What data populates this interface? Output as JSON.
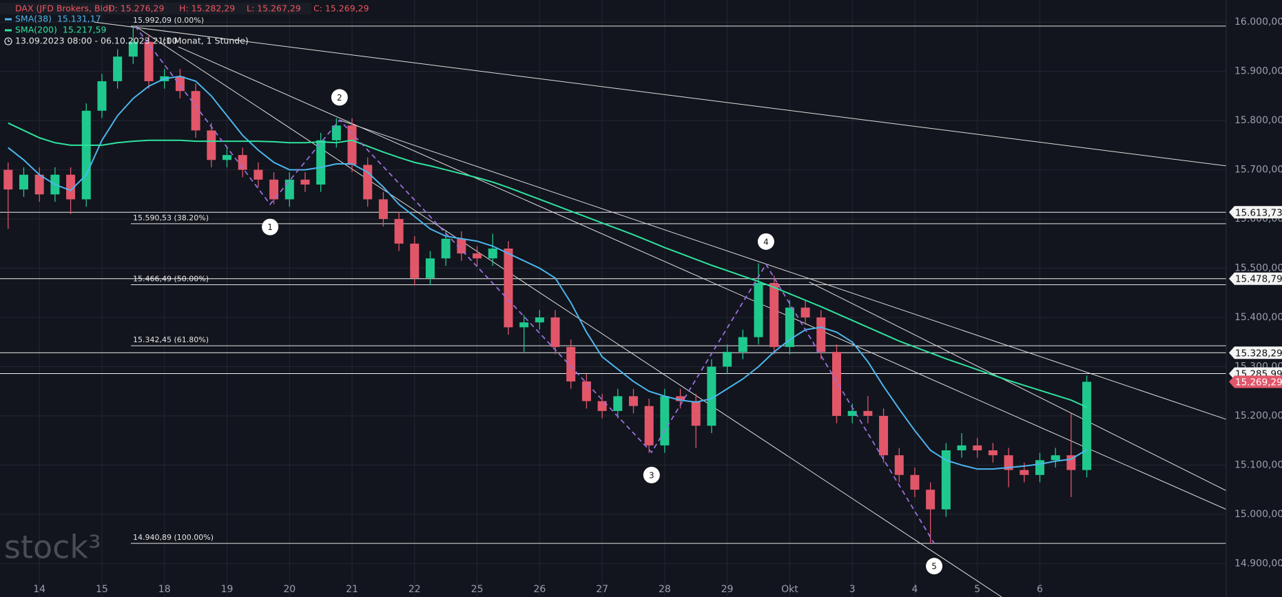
{
  "header": {
    "instrument": "DAX (JFD Brokers, Bid)",
    "ohlc": [
      "O: 15.276,29",
      "H: 15.282,29",
      "L: 15.267,29",
      "C: 15.269,29"
    ],
    "period": "13.09.2023 08:00 - 06.10.2023 21:00",
    "interval": "(1 Monat, 1 Stunde)"
  },
  "watermark": "stock³",
  "chart_data": {
    "type": "candlestick",
    "up_color": "#1fc98e",
    "down_color": "#e2566a",
    "x": [
      -0.5,
      -0.25,
      0,
      0.25,
      0.5,
      0.75,
      1,
      1.25,
      1.5,
      1.75,
      2,
      2.25,
      2.5,
      2.75,
      3,
      3.25,
      3.5,
      3.75,
      4,
      4.25,
      4.5,
      4.75,
      5,
      5.25,
      5.5,
      5.75,
      6,
      6.25,
      6.5,
      6.75,
      7,
      7.25,
      7.5,
      7.75,
      8,
      8.25,
      8.5,
      8.75,
      9,
      9.25,
      9.5,
      9.75,
      10,
      10.25,
      10.5,
      10.75,
      11,
      11.25,
      11.5,
      11.75,
      12,
      12.25,
      12.5,
      12.75,
      13,
      13.25,
      13.5,
      13.75,
      14,
      14.25,
      14.5,
      14.75,
      15,
      15.25,
      15.5,
      15.75,
      16,
      16.25,
      16.5,
      16.75
    ],
    "open": [
      15700,
      15660,
      15690,
      15650,
      15690,
      15640,
      15820,
      15880,
      15930,
      15960,
      15880,
      15890,
      15860,
      15780,
      15720,
      15730,
      15700,
      15680,
      15640,
      15680,
      15670,
      15760,
      15790,
      15710,
      15640,
      15600,
      15550,
      15480,
      15520,
      15560,
      15530,
      15520,
      15540,
      15380,
      15390,
      15400,
      15340,
      15270,
      15230,
      15210,
      15240,
      15220,
      15140,
      15240,
      15230,
      15180,
      15300,
      15330,
      15360,
      15470,
      15340,
      15420,
      15400,
      15330,
      15200,
      15210,
      15200,
      15120,
      15080,
      15050,
      15010,
      15130,
      15140,
      15130,
      15120,
      15090,
      15080,
      15110,
      15120,
      15090
    ],
    "high": [
      15715,
      15705,
      15705,
      15705,
      15705,
      15835,
      15895,
      15945,
      15992,
      15975,
      15905,
      15905,
      15875,
      15795,
      15745,
      15745,
      15715,
      15695,
      15695,
      15695,
      15775,
      15805,
      15805,
      15725,
      15655,
      15615,
      15565,
      15535,
      15575,
      15575,
      15545,
      15570,
      15555,
      15405,
      15415,
      15415,
      15355,
      15285,
      15245,
      15255,
      15255,
      15235,
      15255,
      15255,
      15245,
      15315,
      15345,
      15375,
      15510,
      15485,
      15435,
      15435,
      15415,
      15345,
      15225,
      15240,
      15215,
      15135,
      15095,
      15065,
      15145,
      15165,
      15155,
      15145,
      15135,
      15105,
      15125,
      15135,
      15205,
      15282
    ],
    "low": [
      15580,
      15645,
      15635,
      15635,
      15610,
      15625,
      15805,
      15865,
      15915,
      15865,
      15865,
      15845,
      15765,
      15705,
      15705,
      15685,
      15665,
      15630,
      15625,
      15655,
      15655,
      15745,
      15695,
      15625,
      15585,
      15535,
      15465,
      15465,
      15505,
      15515,
      15505,
      15505,
      15365,
      15330,
      15375,
      15325,
      15255,
      15215,
      15195,
      15195,
      15205,
      15125,
      15125,
      15215,
      15135,
      15165,
      15285,
      15315,
      15345,
      15325,
      15325,
      15385,
      15315,
      15185,
      15185,
      15185,
      15105,
      15065,
      15035,
      14940,
      14995,
      15115,
      15115,
      15105,
      15055,
      15065,
      15065,
      15095,
      15035,
      15075
    ],
    "close": [
      15660,
      15690,
      15650,
      15690,
      15640,
      15820,
      15880,
      15930,
      15960,
      15880,
      15890,
      15860,
      15780,
      15720,
      15730,
      15700,
      15680,
      15640,
      15680,
      15670,
      15760,
      15790,
      15710,
      15640,
      15600,
      15550,
      15480,
      15520,
      15560,
      15530,
      15520,
      15540,
      15380,
      15390,
      15400,
      15340,
      15270,
      15230,
      15210,
      15240,
      15220,
      15140,
      15240,
      15230,
      15180,
      15300,
      15330,
      15360,
      15470,
      15340,
      15420,
      15400,
      15330,
      15200,
      15210,
      15200,
      15120,
      15080,
      15050,
      15010,
      15130,
      15140,
      15130,
      15120,
      15090,
      15080,
      15110,
      15120,
      15090,
      15269.29
    ],
    "series": [
      {
        "name": "SMA(38)",
        "color": "#4db6ee",
        "value_label": "15.131,17",
        "values": [
          15745,
          15720,
          15690,
          15670,
          15658,
          15690,
          15760,
          15810,
          15845,
          15870,
          15885,
          15890,
          15880,
          15850,
          15810,
          15770,
          15740,
          15715,
          15700,
          15700,
          15705,
          15712,
          15712,
          15695,
          15665,
          15630,
          15605,
          15580,
          15565,
          15560,
          15555,
          15545,
          15530,
          15515,
          15500,
          15480,
          15430,
          15370,
          15320,
          15295,
          15270,
          15250,
          15240,
          15232,
          15228,
          15235,
          15255,
          15275,
          15300,
          15330,
          15355,
          15375,
          15380,
          15370,
          15350,
          15310,
          15260,
          15214,
          15170,
          15130,
          15110,
          15100,
          15092,
          15092,
          15095,
          15098,
          15102,
          15108,
          15112,
          15131.17
        ]
      },
      {
        "name": "SMA(200)",
        "color": "#2fe3a0",
        "value_label": "15.217,59",
        "values": [
          15795,
          15780,
          15765,
          15755,
          15750,
          15750,
          15750,
          15755,
          15758,
          15760,
          15760,
          15760,
          15758,
          15758,
          15758,
          15758,
          15758,
          15757,
          15755,
          15755,
          15757,
          15755,
          15760,
          15748,
          15736,
          15725,
          15715,
          15708,
          15700,
          15692,
          15684,
          15675,
          15664,
          15652,
          15640,
          15628,
          15616,
          15604,
          15592,
          15580,
          15568,
          15555,
          15542,
          15530,
          15518,
          15506,
          15495,
          15484,
          15473,
          15461,
          15448,
          15435,
          15422,
          15408,
          15394,
          15380,
          15366,
          15352,
          15340,
          15328,
          15316,
          15305,
          15294,
          15283,
          15272,
          15262,
          15252,
          15242,
          15232,
          15217.59
        ]
      }
    ],
    "xlim": [
      -0.63,
      18.98
    ],
    "xticks": [
      {
        "value": 0,
        "label": "14"
      },
      {
        "value": 1,
        "label": "15"
      },
      {
        "value": 2,
        "label": "18"
      },
      {
        "value": 3,
        "label": "19"
      },
      {
        "value": 4,
        "label": "20"
      },
      {
        "value": 5,
        "label": "21"
      },
      {
        "value": 6,
        "label": "22"
      },
      {
        "value": 7,
        "label": "25"
      },
      {
        "value": 8,
        "label": "26"
      },
      {
        "value": 9,
        "label": "27"
      },
      {
        "value": 10,
        "label": "28"
      },
      {
        "value": 11,
        "label": "29"
      },
      {
        "value": 12,
        "label": "Okt"
      },
      {
        "value": 13,
        "label": "3"
      },
      {
        "value": 14,
        "label": "4"
      },
      {
        "value": 15,
        "label": "5"
      },
      {
        "value": 16,
        "label": "6"
      }
    ],
    "ylim": [
      14832,
      16045
    ],
    "yticks": [
      {
        "value": 14900,
        "label": "14.900,00"
      },
      {
        "value": 15000,
        "label": "15.000,00"
      },
      {
        "value": 15100,
        "label": "15.100,00"
      },
      {
        "value": 15200,
        "label": "15.200,00"
      },
      {
        "value": 15300,
        "label": "15.300,00"
      },
      {
        "value": 15400,
        "label": "15.400,00"
      },
      {
        "value": 15500,
        "label": "15.500,00"
      },
      {
        "value": 15600,
        "label": "15.600,00"
      },
      {
        "value": 15700,
        "label": "15.700,00"
      },
      {
        "value": 15800,
        "label": "15.800,00"
      },
      {
        "value": 15900,
        "label": "15.900,00"
      },
      {
        "value": 16000,
        "label": "16.000,00"
      }
    ],
    "grid": true,
    "fibonacci": [
      {
        "value": 15992.09,
        "label": "15.992,09 (0.00%)"
      },
      {
        "value": 15590.53,
        "label": "15.590,53 (38.20%)"
      },
      {
        "value": 15466.49,
        "label": "15.466,49 (50.00%)"
      },
      {
        "value": 15342.45,
        "label": "15.342,45 (61.80%)"
      },
      {
        "value": 14940.89,
        "label": "14.940,89 (100.00%)"
      }
    ],
    "price_lines": [
      {
        "value": 15613.73,
        "label": "15.613,73"
      },
      {
        "value": 15478.79,
        "label": "15.478,79"
      },
      {
        "value": 15328.29,
        "label": "15.328,29"
      },
      {
        "value": 15285.99,
        "label": "15.285,99"
      }
    ],
    "last_price": {
      "value": 15269.29,
      "label": "15.269,29"
    },
    "trendlines": [
      {
        "x": [
          0.876,
          18.98
        ],
        "y": [
          16000,
          15708
        ]
      },
      {
        "x": [
          1.53,
          15.39
        ],
        "y": [
          15992,
          14832
        ]
      },
      {
        "x": [
          4.8,
          18.98
        ],
        "y": [
          15801,
          15193
        ]
      },
      {
        "x": [
          2.22,
          18.98
        ],
        "y": [
          15950,
          15010
        ]
      },
      {
        "x": [
          12.31,
          18.98
        ],
        "y": [
          15472,
          15048
        ]
      }
    ],
    "wave": {
      "start": {
        "x": 1.53,
        "y": 15992.09
      },
      "color": "#9a6ee0",
      "points": [
        {
          "label": "1",
          "x": 3.69,
          "y": 15630
        },
        {
          "label": "2",
          "x": 4.8,
          "y": 15801
        },
        {
          "label": "3",
          "x": 9.79,
          "y": 15126
        },
        {
          "label": "4",
          "x": 11.62,
          "y": 15508
        },
        {
          "label": "5",
          "x": 14.31,
          "y": 14940.89
        }
      ]
    }
  }
}
